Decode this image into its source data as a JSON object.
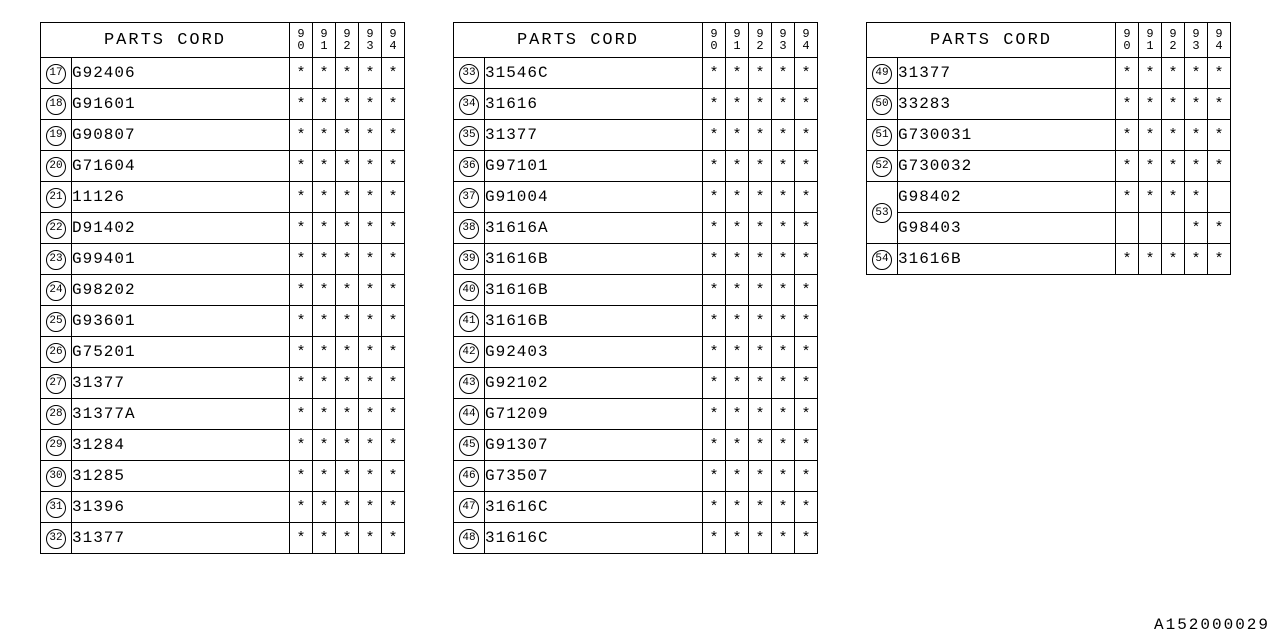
{
  "header_title": "PARTS CORD",
  "years": [
    "90",
    "91",
    "92",
    "93",
    "94"
  ],
  "asterisk": "*",
  "doc_id": "A152000029",
  "col_widths": {
    "idx": 30,
    "part": 218,
    "year": 22
  },
  "tables": [
    {
      "rows": [
        {
          "n": "17",
          "part": "G92406",
          "m": [
            "*",
            "*",
            "*",
            "*",
            "*"
          ]
        },
        {
          "n": "18",
          "part": "G91601",
          "m": [
            "*",
            "*",
            "*",
            "*",
            "*"
          ]
        },
        {
          "n": "19",
          "part": "G90807",
          "m": [
            "*",
            "*",
            "*",
            "*",
            "*"
          ]
        },
        {
          "n": "20",
          "part": "G71604",
          "m": [
            "*",
            "*",
            "*",
            "*",
            "*"
          ]
        },
        {
          "n": "21",
          "part": "11126",
          "m": [
            "*",
            "*",
            "*",
            "*",
            "*"
          ]
        },
        {
          "n": "22",
          "part": "D91402",
          "m": [
            "*",
            "*",
            "*",
            "*",
            "*"
          ]
        },
        {
          "n": "23",
          "part": "G99401",
          "m": [
            "*",
            "*",
            "*",
            "*",
            "*"
          ]
        },
        {
          "n": "24",
          "part": "G98202",
          "m": [
            "*",
            "*",
            "*",
            "*",
            "*"
          ]
        },
        {
          "n": "25",
          "part": "G93601",
          "m": [
            "*",
            "*",
            "*",
            "*",
            "*"
          ]
        },
        {
          "n": "26",
          "part": "G75201",
          "m": [
            "*",
            "*",
            "*",
            "*",
            "*"
          ]
        },
        {
          "n": "27",
          "part": "31377",
          "m": [
            "*",
            "*",
            "*",
            "*",
            "*"
          ]
        },
        {
          "n": "28",
          "part": "31377A",
          "m": [
            "*",
            "*",
            "*",
            "*",
            "*"
          ]
        },
        {
          "n": "29",
          "part": "31284",
          "m": [
            "*",
            "*",
            "*",
            "*",
            "*"
          ]
        },
        {
          "n": "30",
          "part": "31285",
          "m": [
            "*",
            "*",
            "*",
            "*",
            "*"
          ]
        },
        {
          "n": "31",
          "part": "31396",
          "m": [
            "*",
            "*",
            "*",
            "*",
            "*"
          ]
        },
        {
          "n": "32",
          "part": "31377",
          "m": [
            "*",
            "*",
            "*",
            "*",
            "*"
          ]
        }
      ]
    },
    {
      "rows": [
        {
          "n": "33",
          "part": "31546C",
          "m": [
            "*",
            "*",
            "*",
            "*",
            "*"
          ]
        },
        {
          "n": "34",
          "part": "31616",
          "m": [
            "*",
            "*",
            "*",
            "*",
            "*"
          ]
        },
        {
          "n": "35",
          "part": "31377",
          "m": [
            "*",
            "*",
            "*",
            "*",
            "*"
          ]
        },
        {
          "n": "36",
          "part": "G97101",
          "m": [
            "*",
            "*",
            "*",
            "*",
            "*"
          ]
        },
        {
          "n": "37",
          "part": "G91004",
          "m": [
            "*",
            "*",
            "*",
            "*",
            "*"
          ]
        },
        {
          "n": "38",
          "part": "31616A",
          "m": [
            "*",
            "*",
            "*",
            "*",
            "*"
          ]
        },
        {
          "n": "39",
          "part": "31616B",
          "m": [
            "*",
            "*",
            "*",
            "*",
            "*"
          ]
        },
        {
          "n": "40",
          "part": "31616B",
          "m": [
            "*",
            "*",
            "*",
            "*",
            "*"
          ]
        },
        {
          "n": "41",
          "part": "31616B",
          "m": [
            "*",
            "*",
            "*",
            "*",
            "*"
          ]
        },
        {
          "n": "42",
          "part": "G92403",
          "m": [
            "*",
            "*",
            "*",
            "*",
            "*"
          ]
        },
        {
          "n": "43",
          "part": "G92102",
          "m": [
            "*",
            "*",
            "*",
            "*",
            "*"
          ]
        },
        {
          "n": "44",
          "part": "G71209",
          "m": [
            "*",
            "*",
            "*",
            "*",
            "*"
          ]
        },
        {
          "n": "45",
          "part": "G91307",
          "m": [
            "*",
            "*",
            "*",
            "*",
            "*"
          ]
        },
        {
          "n": "46",
          "part": "G73507",
          "m": [
            "*",
            "*",
            "*",
            "*",
            "*"
          ]
        },
        {
          "n": "47",
          "part": "31616C",
          "m": [
            "*",
            "*",
            "*",
            "*",
            "*"
          ]
        },
        {
          "n": "48",
          "part": "31616C",
          "m": [
            "*",
            "*",
            "*",
            "*",
            "*"
          ]
        }
      ]
    },
    {
      "rows": [
        {
          "n": "49",
          "part": "31377",
          "m": [
            "*",
            "*",
            "*",
            "*",
            "*"
          ]
        },
        {
          "n": "50",
          "part": "33283",
          "m": [
            "*",
            "*",
            "*",
            "*",
            "*"
          ]
        },
        {
          "n": "51",
          "part": "G730031",
          "m": [
            "*",
            "*",
            "*",
            "*",
            "*"
          ]
        },
        {
          "n": "52",
          "part": "G730032",
          "m": [
            "*",
            "*",
            "*",
            "*",
            "*"
          ]
        },
        {
          "n": "53",
          "part": "G98402",
          "m": [
            "*",
            "*",
            "*",
            "*",
            ""
          ],
          "idx_rowspan": 2
        },
        {
          "n": "",
          "part": "G98403",
          "m": [
            "",
            "",
            "",
            "*",
            "*"
          ],
          "skip_idx": true
        },
        {
          "n": "54",
          "part": "31616B",
          "m": [
            "*",
            "*",
            "*",
            "*",
            "*"
          ]
        }
      ]
    }
  ]
}
